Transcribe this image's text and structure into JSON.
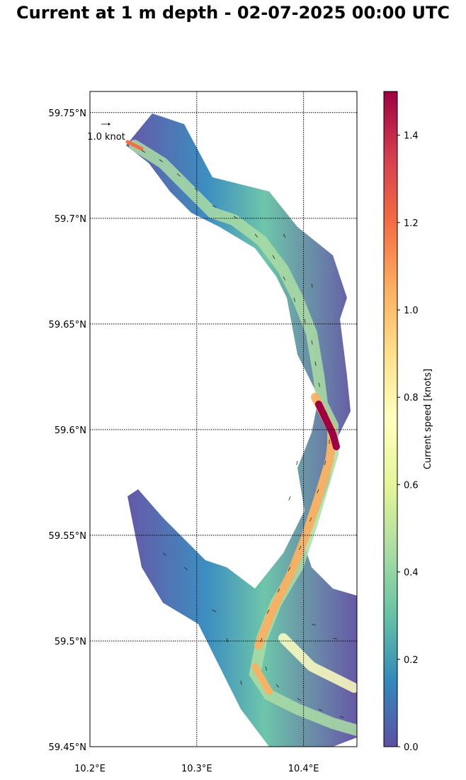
{
  "title": "Current at 1 m depth - 02-07-2025 00:00 UTC",
  "map": {
    "lat_range": [
      59.45,
      59.76
    ],
    "lon_range": [
      10.2,
      10.45
    ],
    "lat_ticks": [
      {
        "value": 59.75,
        "label": "59.75°N"
      },
      {
        "value": 59.7,
        "label": "59.7°N"
      },
      {
        "value": 59.65,
        "label": "59.65°N"
      },
      {
        "value": 59.6,
        "label": "59.6°N"
      },
      {
        "value": 59.55,
        "label": "59.55°N"
      },
      {
        "value": 59.5,
        "label": "59.5°N"
      },
      {
        "value": 59.45,
        "label": "59.45°N"
      }
    ],
    "lon_ticks": [
      {
        "value": 10.2,
        "label": "10.2°E"
      },
      {
        "value": 10.3,
        "label": "10.3°E"
      },
      {
        "value": 10.4,
        "label": "10.4°E"
      }
    ],
    "gridlines": "dotted",
    "quiver_key_label": "1.0 knot",
    "quiver_key_position": "top-left"
  },
  "colorbar": {
    "label": "Current speed [knots]",
    "range": [
      0.0,
      1.5
    ],
    "colormap": "Spectral_r",
    "ticks": [
      {
        "value": 0.0,
        "label": "0.0"
      },
      {
        "value": 0.2,
        "label": "0.2"
      },
      {
        "value": 0.4,
        "label": "0.4"
      },
      {
        "value": 0.6,
        "label": "0.6"
      },
      {
        "value": 0.8,
        "label": "0.8"
      },
      {
        "value": 1.0,
        "label": "1.0"
      },
      {
        "value": 1.2,
        "label": "1.2"
      },
      {
        "value": 1.4,
        "label": "1.4"
      }
    ]
  }
}
